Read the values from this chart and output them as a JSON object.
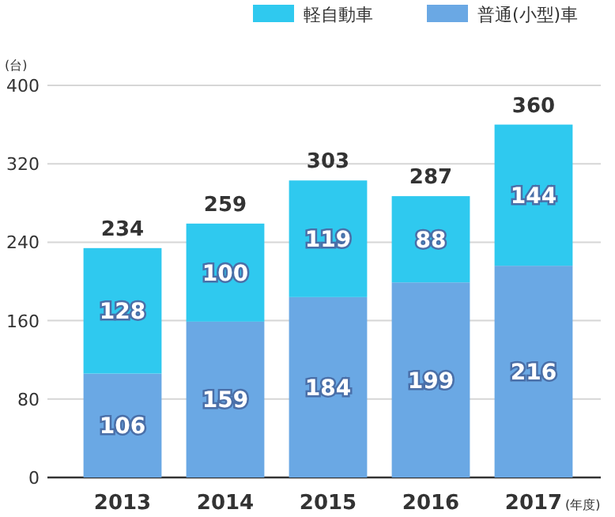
{
  "chart_data": {
    "type": "bar",
    "stacked": true,
    "ylabel": "(台)",
    "xlabel": "(年度)",
    "categories": [
      "2013",
      "2014",
      "2015",
      "2016",
      "2017"
    ],
    "series": [
      {
        "name": "普通(小型)車",
        "color": "#6aa8e4",
        "values": [
          106,
          159,
          184,
          199,
          216
        ]
      },
      {
        "name": "軽自動車",
        "color": "#2fc9ef",
        "values": [
          128,
          100,
          119,
          88,
          144
        ]
      }
    ],
    "totals": [
      "234",
      "259",
      "303",
      "287",
      "360"
    ],
    "data_labels": true,
    "ylim": [
      0,
      400
    ],
    "yticks": [
      0,
      80,
      160,
      240,
      320,
      400
    ],
    "grid": "y",
    "legend": "top right"
  }
}
